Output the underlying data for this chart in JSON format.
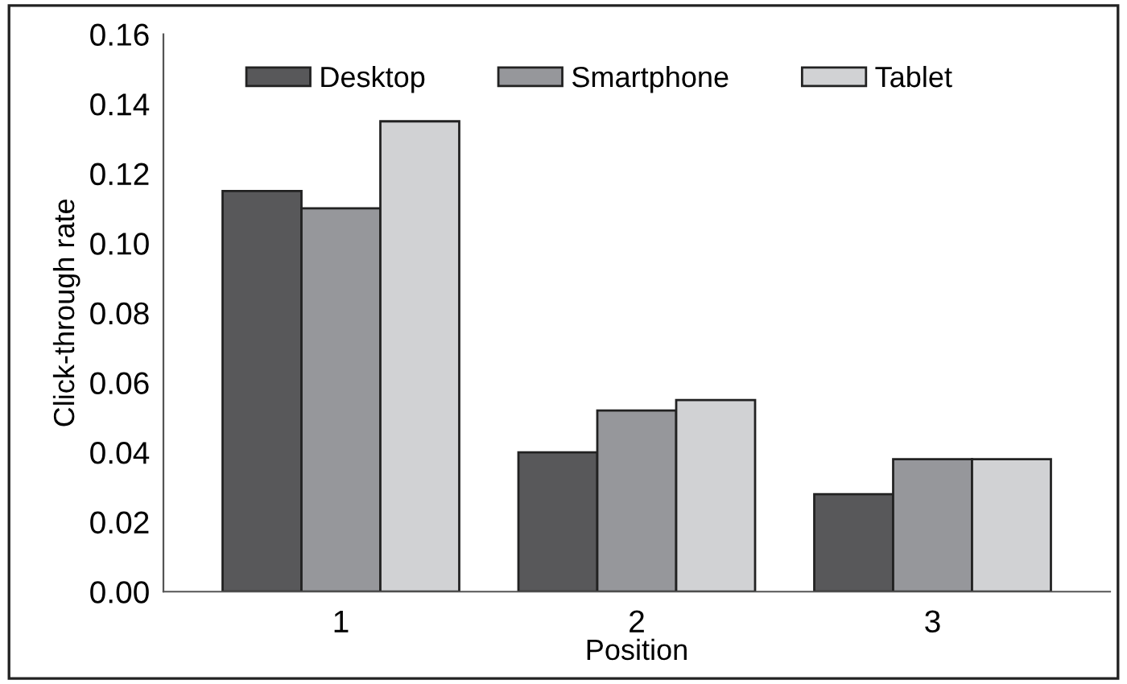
{
  "chart_data": {
    "type": "bar",
    "xlabel": "Position",
    "ylabel": "Click-through rate",
    "categories": [
      "1",
      "2",
      "3"
    ],
    "series": [
      {
        "name": "Desktop",
        "color": "#58585a",
        "values": [
          0.115,
          0.04,
          0.028
        ]
      },
      {
        "name": "Smartphone",
        "color": "#96979b",
        "values": [
          0.11,
          0.052,
          0.038
        ]
      },
      {
        "name": "Tablet",
        "color": "#d1d2d4",
        "values": [
          0.135,
          0.055,
          0.038
        ]
      }
    ],
    "ylim": [
      0,
      0.16
    ],
    "yticks": [
      {
        "value": 0,
        "label": "0.00"
      },
      0.02,
      0.04,
      0.06,
      0.08,
      {
        "value": 0.1,
        "label": "0.10"
      },
      0.12,
      0.14,
      0.16
    ],
    "grid": false,
    "legend": "top left"
  }
}
